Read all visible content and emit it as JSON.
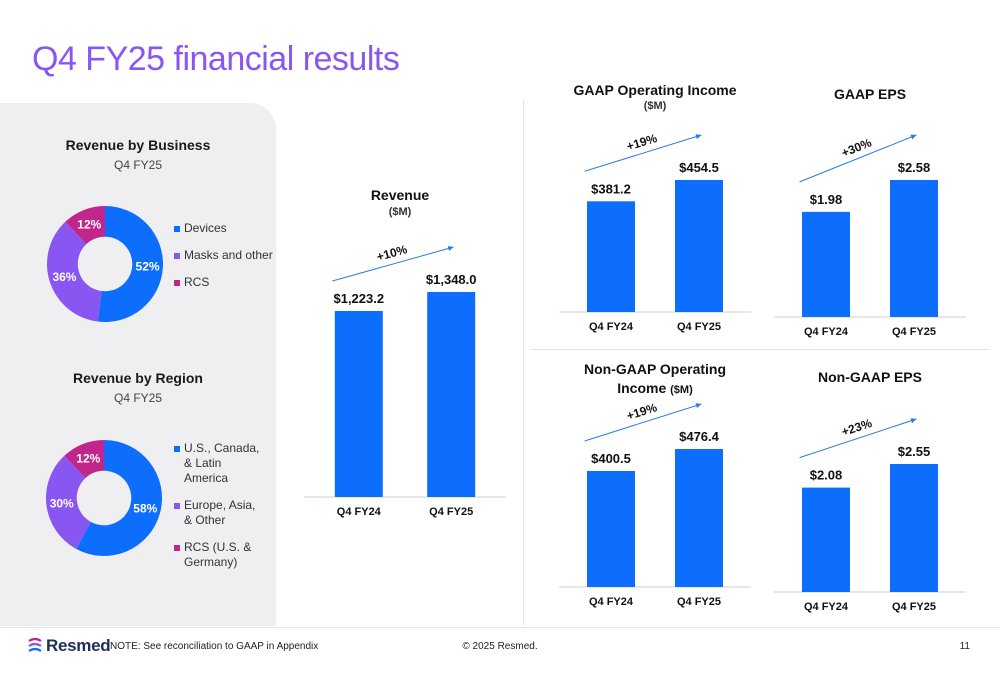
{
  "title": "Q4 FY25 financial results",
  "colors": {
    "title": "#8a56f2",
    "bar": "#0d6efd",
    "devices": "#0d6efd",
    "masks": "#8a56f2",
    "rcs": "#c0268c",
    "arrow": "#2a7de1"
  },
  "footer": {
    "brand": "Resmed",
    "note": "NOTE: See reconciliation to GAAP in Appendix",
    "copyright": "© 2025 Resmed.",
    "page": "11"
  },
  "chart_data": [
    {
      "type": "pie",
      "title": "Revenue by Business",
      "subtitle": "Q4 FY25",
      "labels": [
        "Devices",
        "Masks and other",
        "RCS"
      ],
      "values": [
        52,
        36,
        12
      ],
      "value_labels": [
        "52%",
        "36%",
        "12%"
      ]
    },
    {
      "type": "pie",
      "title": "Revenue by Region",
      "subtitle": "Q4 FY25",
      "labels": [
        "U.S., Canada, & Latin America",
        "Europe, Asia, & Other",
        "RCS (U.S. & Germany)"
      ],
      "values": [
        58,
        30,
        12
      ],
      "value_labels": [
        "58%",
        "30%",
        "12%"
      ]
    },
    {
      "type": "bar",
      "title": "Revenue",
      "subtitle": "($M)",
      "categories": [
        "Q4 FY24",
        "Q4 FY25"
      ],
      "values": [
        1223.2,
        1348.0
      ],
      "value_labels": [
        "$1,223.2",
        "$1,348.0"
      ],
      "growth": "+10%"
    },
    {
      "type": "bar",
      "title": "GAAP Operating Income",
      "subtitle": "($M)",
      "categories": [
        "Q4 FY24",
        "Q4 FY25"
      ],
      "values": [
        381.2,
        454.5
      ],
      "value_labels": [
        "$381.2",
        "$454.5"
      ],
      "growth": "+19%"
    },
    {
      "type": "bar",
      "title": "GAAP EPS",
      "subtitle": "",
      "categories": [
        "Q4 FY24",
        "Q4 FY25"
      ],
      "values": [
        1.98,
        2.58
      ],
      "value_labels": [
        "$1.98",
        "$2.58"
      ],
      "growth": "+30%"
    },
    {
      "type": "bar",
      "title": "Non-GAAP Operating",
      "title_line2": "Income",
      "subtitle": "($M)",
      "categories": [
        "Q4 FY24",
        "Q4 FY25"
      ],
      "values": [
        400.5,
        476.4
      ],
      "value_labels": [
        "$400.5",
        "$476.4"
      ],
      "growth": "+19%"
    },
    {
      "type": "bar",
      "title": "Non-GAAP EPS",
      "subtitle": "",
      "categories": [
        "Q4 FY24",
        "Q4 FY25"
      ],
      "values": [
        2.08,
        2.55
      ],
      "value_labels": [
        "$2.08",
        "$2.55"
      ],
      "growth": "+23%"
    }
  ]
}
